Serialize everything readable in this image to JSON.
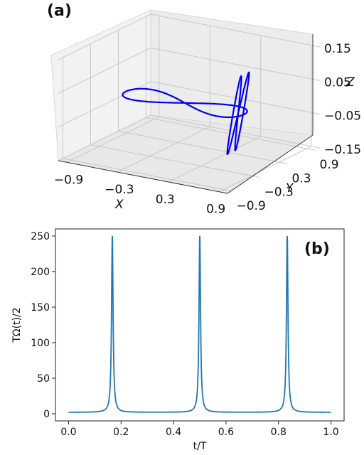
{
  "chart_data": [
    {
      "panel": "(a)",
      "type": "line3d",
      "axes": {
        "x": {
          "label": "X",
          "ticks": [
            "−0.9",
            "−0.3",
            "0.3",
            "0.9"
          ],
          "range": [
            -1.0,
            1.0
          ]
        },
        "y": {
          "label": "Y",
          "ticks": [
            "−0.9",
            "−0.3",
            "0.3",
            "0.9"
          ],
          "range": [
            -1.0,
            1.0
          ]
        },
        "z": {
          "label": "Z",
          "ticks": [
            "−0.15",
            "−0.05",
            "0.05",
            "0.15"
          ],
          "range": [
            -0.15,
            0.15
          ]
        }
      },
      "grid": true,
      "series": [
        {
          "color": "#0000ee",
          "description_points": "figure-eight lobe in the x-direction joined to a figure-eight lobe tilted toward z near x≈0.55",
          "x": [
            -0.8,
            -0.55,
            -0.2,
            0.2,
            0.5,
            0.75,
            0.55,
            0.55,
            0.55,
            0.55,
            0.2,
            -0.2,
            -0.55,
            -0.8
          ],
          "y": [
            0.0,
            0.05,
            0.15,
            0.2,
            0.1,
            0.0,
            -0.1,
            0.0,
            0.1,
            0.0,
            -0.2,
            -0.15,
            -0.05,
            0.0
          ],
          "z": [
            0.0,
            0.02,
            0.03,
            0.01,
            0.0,
            0.0,
            0.12,
            0.0,
            -0.12,
            0.0,
            -0.01,
            -0.03,
            -0.02,
            0.0
          ]
        }
      ]
    },
    {
      "panel": "(b)",
      "type": "line",
      "xlabel": "t/T",
      "ylabel": "TΩ(t)/2",
      "xlim": [
        -0.05,
        1.05
      ],
      "ylim": [
        -10,
        260
      ],
      "xticks": [
        "0.0",
        "0.2",
        "0.4",
        "0.6",
        "0.8",
        "1.0"
      ],
      "yticks": [
        "0",
        "50",
        "100",
        "150",
        "200",
        "250"
      ],
      "grid": false,
      "series": [
        {
          "color": "#1f77b4",
          "baseline": 2,
          "peaks": [
            {
              "t": 0.1667,
              "value": 250
            },
            {
              "t": 0.5,
              "value": 250
            },
            {
              "t": 0.8333,
              "value": 250
            }
          ]
        }
      ]
    }
  ],
  "labels": {
    "panel_a": "(a)",
    "panel_b": "(b)"
  }
}
